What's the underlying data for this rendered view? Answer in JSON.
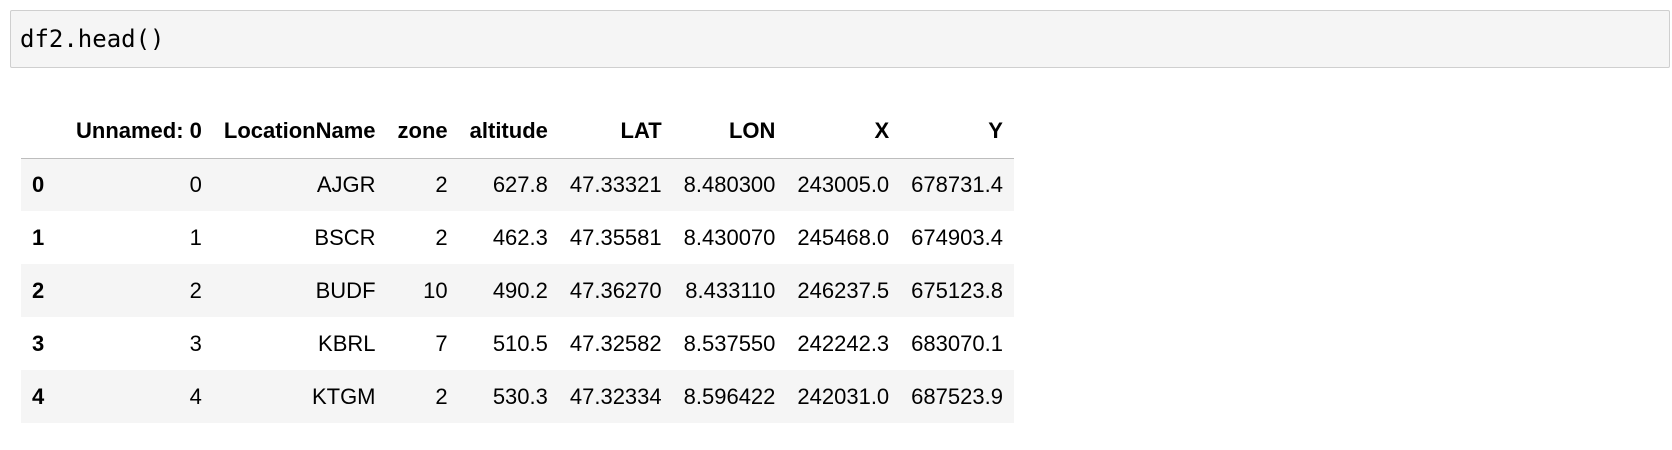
{
  "code_cell": {
    "source": "df2.head()"
  },
  "table": {
    "columns": [
      "",
      "Unnamed: 0",
      "LocationName",
      "zone",
      "altitude",
      "LAT",
      "LON",
      "X",
      "Y"
    ],
    "rows": [
      {
        "index": "0",
        "cells": [
          "0",
          "AJGR",
          "2",
          "627.8",
          "47.33321",
          "8.480300",
          "243005.0",
          "678731.4"
        ]
      },
      {
        "index": "1",
        "cells": [
          "1",
          "BSCR",
          "2",
          "462.3",
          "47.35581",
          "8.430070",
          "245468.0",
          "674903.4"
        ]
      },
      {
        "index": "2",
        "cells": [
          "2",
          "BUDF",
          "10",
          "490.2",
          "47.36270",
          "8.433110",
          "246237.5",
          "675123.8"
        ]
      },
      {
        "index": "3",
        "cells": [
          "3",
          "KBRL",
          "7",
          "510.5",
          "47.32582",
          "8.537550",
          "242242.3",
          "683070.1"
        ]
      },
      {
        "index": "4",
        "cells": [
          "4",
          "KTGM",
          "2",
          "530.3",
          "47.32334",
          "8.596422",
          "242031.0",
          "687523.9"
        ]
      }
    ]
  }
}
